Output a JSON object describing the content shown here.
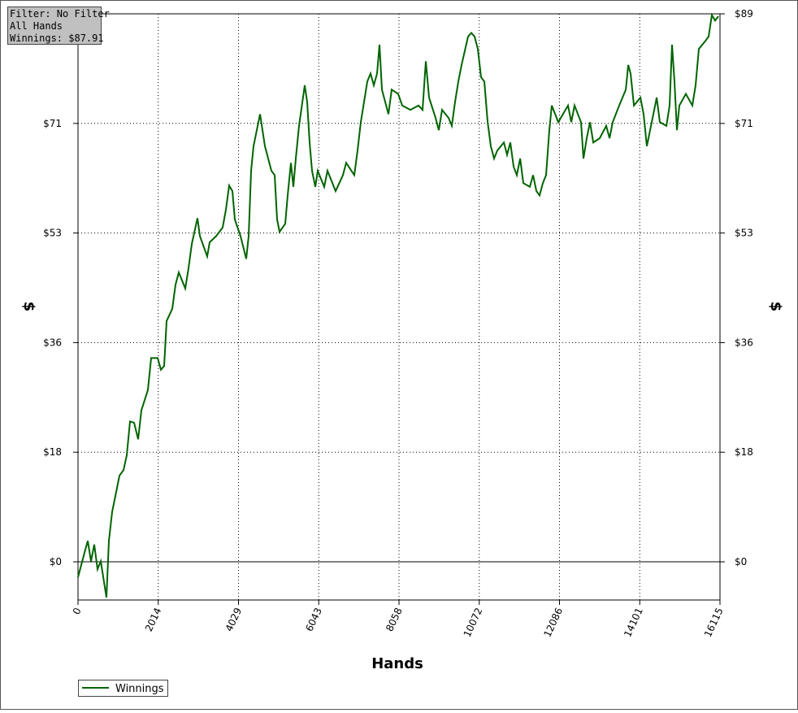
{
  "chart_data": {
    "type": "line",
    "info_box": [
      "Filter: No Filter",
      "All Hands",
      "Winnings: $87.91"
    ],
    "x_label": "Hands",
    "y_label": "$",
    "xlim": [
      0,
      16115
    ],
    "xticks": [
      0,
      2014,
      4029,
      6043,
      8058,
      10072,
      12086,
      14101,
      16115
    ],
    "ylim": [
      -6.2,
      89
    ],
    "yticks": [
      {
        "value": 0,
        "label": "$0"
      },
      {
        "value": 17.8,
        "label": "$18"
      },
      {
        "value": 35.6,
        "label": "$36"
      },
      {
        "value": 53.4,
        "label": "$53"
      },
      {
        "value": 71.2,
        "label": "$71"
      },
      {
        "value": 89,
        "label": "$89"
      }
    ],
    "grid": true,
    "legend": "bottom-left",
    "series": [
      {
        "name": "Winnings",
        "color": "#006400",
        "x": [
          0,
          163,
          245,
          326,
          408,
          490,
          571,
          714,
          775,
          857,
          938,
          1040,
          1142,
          1224,
          1306,
          1408,
          1510,
          1591,
          1754,
          1836,
          1999,
          2081,
          2162,
          2224,
          2366,
          2448,
          2530,
          2693,
          2774,
          2856,
          2999,
          3060,
          3244,
          3305,
          3468,
          3631,
          3713,
          3794,
          3876,
          3937,
          4080,
          4223,
          4284,
          4345,
          4406,
          4488,
          4570,
          4692,
          4855,
          4937,
          4998,
          5059,
          5202,
          5263,
          5345,
          5406,
          5467,
          5549,
          5692,
          5753,
          5814,
          5875,
          5957,
          6018,
          6181,
          6263,
          6467,
          6650,
          6732,
          6936,
          7018,
          7099,
          7262,
          7344,
          7426,
          7507,
          7568,
          7630,
          7793,
          7874,
          8038,
          8140,
          8344,
          8548,
          8650,
          8731,
          8813,
          8976,
          9058,
          9139,
          9302,
          9384,
          9466,
          9547,
          9629,
          9792,
          9874,
          9955,
          10037,
          10118,
          10200,
          10282,
          10363,
          10445,
          10526,
          10690,
          10771,
          10853,
          10934,
          11016,
          11098,
          11179,
          11342,
          11424,
          11506,
          11587,
          11669,
          11750,
          11832,
          11893,
          12056,
          12301,
          12383,
          12464,
          12627,
          12689,
          12770,
          12852,
          12934,
          13097,
          13260,
          13342,
          13423,
          13586,
          13750,
          13811,
          13872,
          13954,
          14117,
          14198,
          14280,
          14443,
          14525,
          14606,
          14770,
          14851,
          14912,
          14973,
          15034,
          15096,
          15259,
          15422,
          15504,
          15585,
          15749,
          15830,
          15912,
          15993,
          16075
        ],
        "values": [
          -2.5,
          1.5,
          3.4,
          0.1,
          2.8,
          -1.2,
          0.1,
          -5.8,
          3.4,
          8.1,
          10.7,
          14.0,
          14.9,
          17.3,
          22.8,
          22.6,
          19.9,
          24.6,
          27.9,
          33.1,
          33.1,
          31.2,
          31.8,
          39.1,
          41.1,
          45.0,
          47.0,
          44.4,
          47.7,
          51.6,
          55.8,
          52.9,
          49.6,
          51.9,
          52.9,
          54.3,
          57.2,
          61.1,
          60.2,
          55.6,
          52.9,
          49.2,
          52.9,
          63.5,
          67.5,
          70.1,
          72.7,
          67.5,
          63.5,
          62.8,
          55.6,
          53.6,
          54.9,
          59.5,
          64.8,
          60.9,
          65.5,
          70.8,
          77.4,
          74.7,
          68.1,
          63.5,
          60.9,
          63.5,
          60.9,
          63.5,
          60.2,
          62.8,
          64.8,
          62.8,
          66.8,
          71.4,
          78.0,
          79.3,
          77.4,
          79.3,
          84.0,
          76.7,
          72.7,
          76.7,
          76.0,
          74.1,
          73.4,
          74.1,
          73.4,
          81.3,
          75.4,
          72.1,
          70.1,
          73.4,
          72.1,
          70.8,
          74.7,
          78.0,
          80.7,
          85.3,
          85.9,
          85.3,
          83.3,
          78.7,
          78.0,
          71.4,
          67.5,
          65.5,
          66.8,
          68.1,
          66.1,
          68.1,
          64.2,
          62.8,
          65.5,
          61.5,
          60.9,
          62.8,
          60.2,
          59.5,
          61.5,
          62.8,
          70.1,
          74.1,
          71.4,
          74.1,
          71.4,
          74.1,
          71.4,
          65.5,
          68.8,
          71.4,
          68.1,
          68.8,
          70.8,
          68.8,
          71.4,
          74.1,
          76.7,
          80.7,
          79.3,
          74.1,
          75.4,
          72.7,
          67.5,
          72.7,
          75.4,
          71.4,
          70.8,
          74.1,
          84.0,
          78.0,
          70.1,
          74.1,
          76.0,
          74.1,
          77.4,
          83.3,
          84.6,
          85.3,
          88.8,
          87.9,
          88.6
        ]
      }
    ]
  }
}
